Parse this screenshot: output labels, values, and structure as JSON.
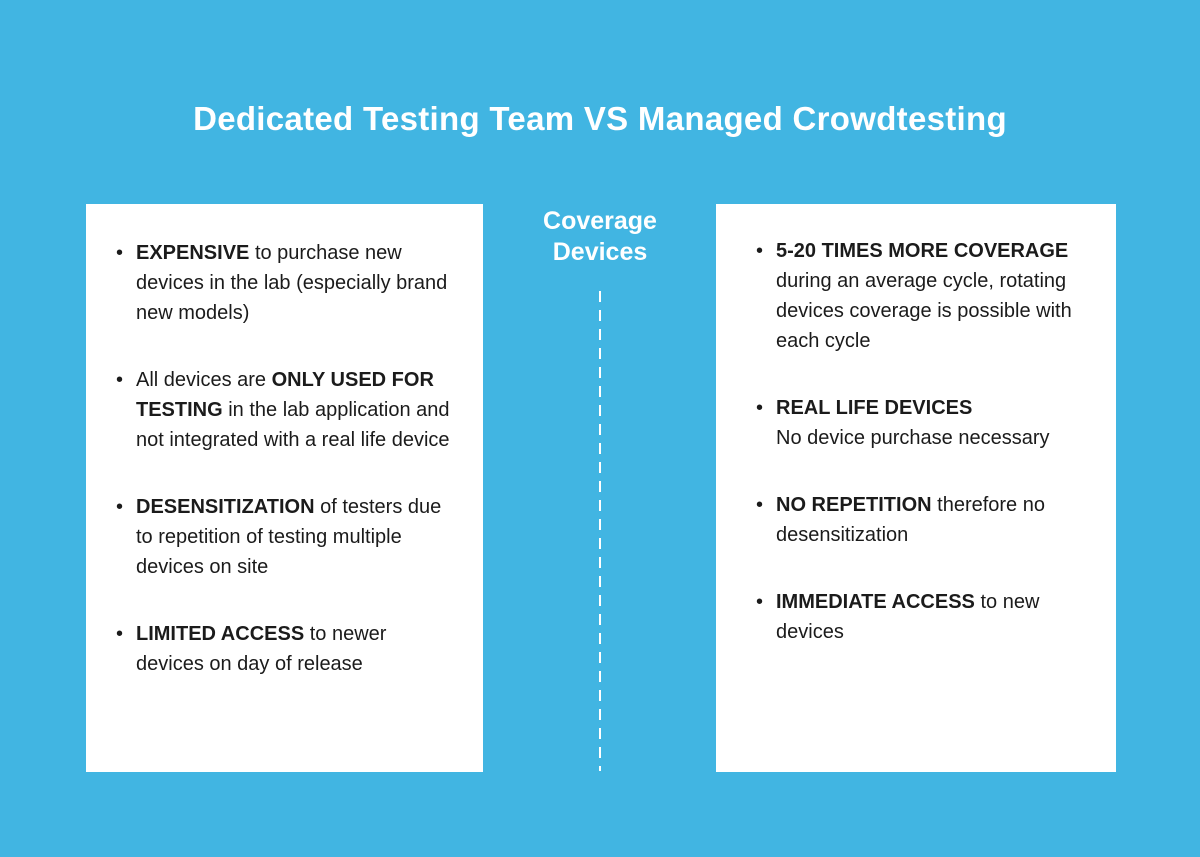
{
  "theme": {
    "background": "#41b5e2",
    "card_background": "#ffffff",
    "heading_color": "#ffffff",
    "text_color": "#1b1b1b",
    "divider_color": "#ffffff"
  },
  "header": {
    "title": "Dedicated Testing Team VS Managed Crowdtesting"
  },
  "center": {
    "label": "Coverage\nDevices"
  },
  "comparison": {
    "left": {
      "items": [
        [
          {
            "t": "EXPENSIVE",
            "b": true
          },
          {
            "t": " to purchase new devices in the lab (especially brand new models)",
            "b": false
          }
        ],
        [
          {
            "t": "All devices are ",
            "b": false
          },
          {
            "t": "ONLY USED FOR TESTING",
            "b": true
          },
          {
            "t": " in the lab application and not integrated with a real life device",
            "b": false
          }
        ],
        [
          {
            "t": "DESENSITIZATION",
            "b": true
          },
          {
            "t": " of testers due to repetition of testing multiple devices on site",
            "b": false
          }
        ],
        [
          {
            "t": "LIMITED ACCESS",
            "b": true
          },
          {
            "t": " to newer devices on day of release",
            "b": false
          }
        ]
      ]
    },
    "right": {
      "items": [
        [
          {
            "t": "5-20 TIMES MORE COVERAGE",
            "b": true
          },
          {
            "t": " during an average cycle, rotating devices coverage is possible with each cycle",
            "b": false
          }
        ],
        [
          {
            "t": "REAL LIFE DEVICES",
            "b": true
          },
          {
            "t": "\nNo device purchase necessary",
            "b": false
          }
        ],
        [
          {
            "t": "NO REPETITION",
            "b": true
          },
          {
            "t": " therefore no desensitization",
            "b": false
          }
        ],
        [
          {
            "t": "IMMEDIATE ACCESS",
            "b": true
          },
          {
            "t": " to new devices",
            "b": false
          }
        ]
      ]
    }
  }
}
